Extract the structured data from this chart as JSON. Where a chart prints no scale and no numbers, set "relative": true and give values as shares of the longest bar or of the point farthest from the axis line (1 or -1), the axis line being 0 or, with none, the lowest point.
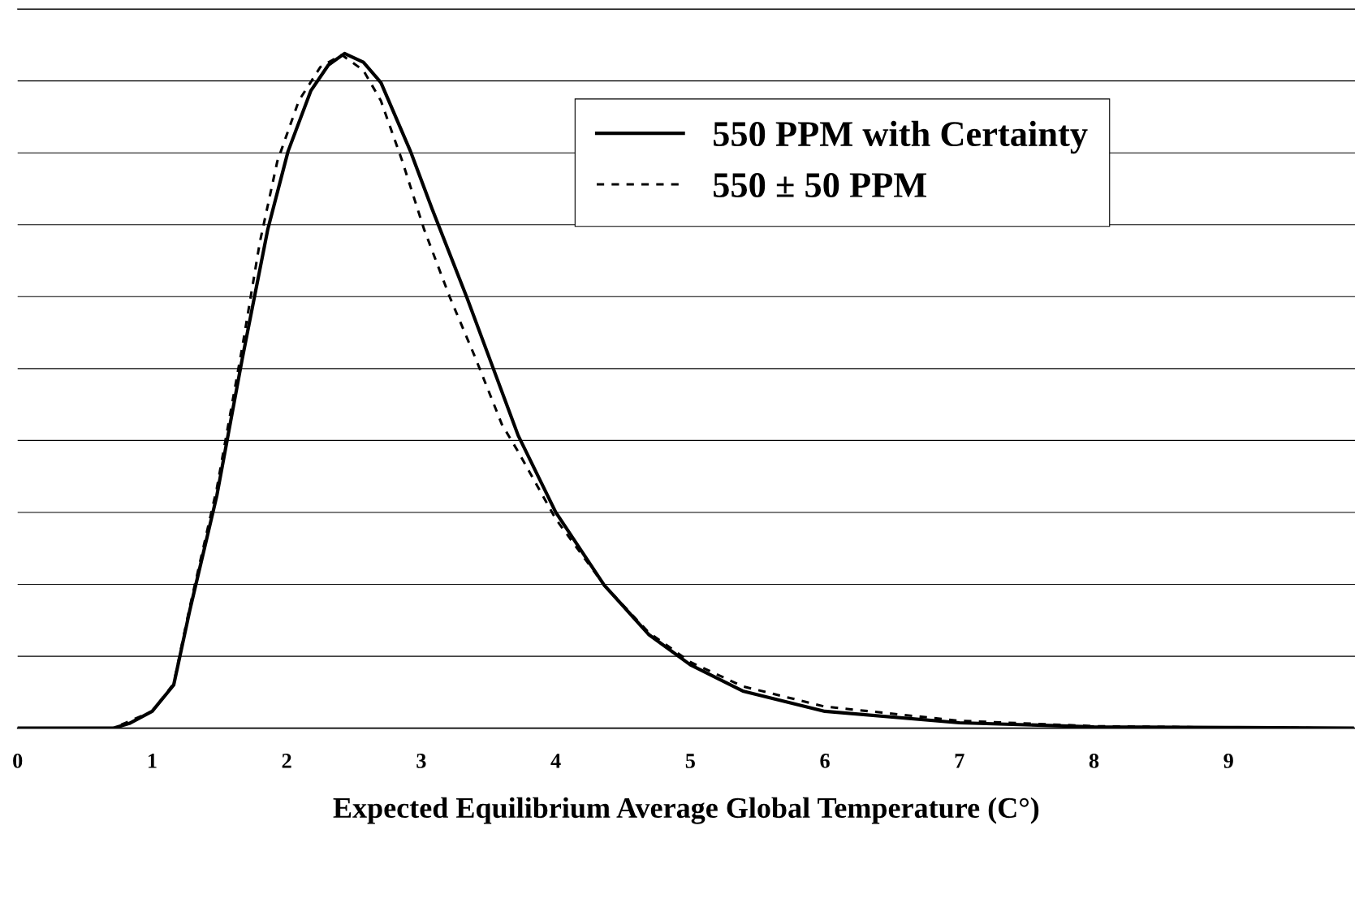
{
  "chart_data": {
    "type": "line",
    "relative": true,
    "xlabel": "Expected Equilibrium Average Global Temperature (C°)",
    "xlim": [
      0,
      9.94
    ],
    "xticks": [
      0,
      1,
      2,
      3,
      4,
      5,
      6,
      7,
      8,
      9
    ],
    "grid": "y",
    "legend": "top right",
    "marker": "none",
    "series": [
      {
        "name": "550 PPM with Certainty",
        "color": "#000000",
        "line_style": "solid",
        "x": [
          0,
          0.71,
          0.83,
          1.0,
          1.16,
          1.28,
          1.48,
          1.67,
          1.86,
          2.01,
          2.18,
          2.31,
          2.43,
          2.57,
          2.7,
          2.92,
          3.08,
          3.34,
          3.53,
          3.72,
          4.0,
          4.36,
          4.69,
          5.0,
          5.39,
          6.0,
          7.0,
          8.0,
          9.0,
          9.92
        ],
        "values": [
          0,
          0,
          0.007,
          0.025,
          0.064,
          0.175,
          0.344,
          0.548,
          0.74,
          0.855,
          0.945,
          0.983,
          1,
          0.987,
          0.957,
          0.855,
          0.77,
          0.638,
          0.536,
          0.434,
          0.32,
          0.212,
          0.139,
          0.094,
          0.055,
          0.025,
          0.008,
          0.002,
          0.001,
          0
        ]
      },
      {
        "name": "550 ± 50 PPM",
        "color": "#000000",
        "line_style": "dashed",
        "x": [
          0,
          0.71,
          1.0,
          1.16,
          1.28,
          1.48,
          1.67,
          1.8,
          1.93,
          2.09,
          2.25,
          2.41,
          2.57,
          2.7,
          2.86,
          3.02,
          3.21,
          3.4,
          3.6,
          3.72,
          4.0,
          4.36,
          4.69,
          5.0,
          5.39,
          6.0,
          7.0,
          8.0,
          9.0,
          9.92
        ],
        "values": [
          0,
          0,
          0.025,
          0.066,
          0.18,
          0.355,
          0.565,
          0.72,
          0.84,
          0.93,
          0.98,
          0.998,
          0.975,
          0.93,
          0.84,
          0.74,
          0.64,
          0.55,
          0.45,
          0.41,
          0.31,
          0.212,
          0.142,
          0.098,
          0.062,
          0.032,
          0.011,
          0.003,
          0.001,
          0
        ]
      }
    ]
  }
}
